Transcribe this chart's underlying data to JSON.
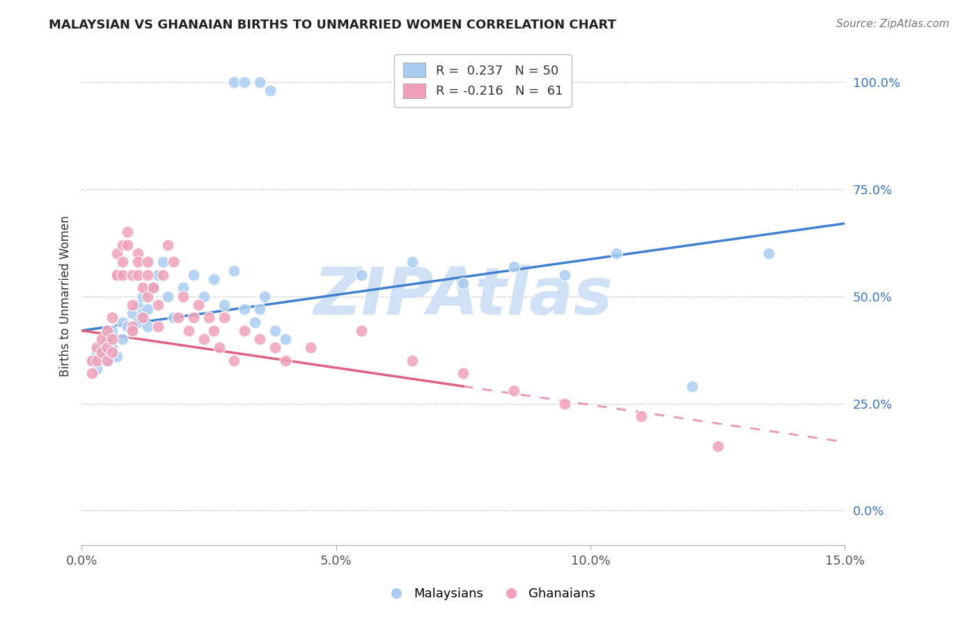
{
  "title": "MALAYSIAN VS GHANAIAN BIRTHS TO UNMARRIED WOMEN CORRELATION CHART",
  "source": "Source: ZipAtlas.com",
  "ylabel": "Births to Unmarried Women",
  "xlabel_vals": [
    0.0,
    5.0,
    10.0,
    15.0
  ],
  "ylabel_vals": [
    0.0,
    25.0,
    50.0,
    75.0,
    100.0
  ],
  "xlim": [
    0.0,
    15.0
  ],
  "ylim": [
    -8.0,
    108.0
  ],
  "blue_r": "0.237",
  "blue_n": "50",
  "pink_r": "-0.216",
  "pink_n": "61",
  "blue_color": "#A8CCF0",
  "pink_color": "#F0A0B8",
  "blue_line_color": "#4080D0",
  "pink_line_color": "#E06080",
  "watermark": "ZIPAtlas",
  "watermark_color": "#D0E0F5",
  "background_color": "#FFFFFF",
  "blue_line_x0": 0.0,
  "blue_line_y0": 42.0,
  "blue_line_x1": 15.0,
  "blue_line_y1": 67.0,
  "pink_line_x0": 0.0,
  "pink_line_y0": 42.0,
  "pink_line_x1": 15.0,
  "pink_line_y1": 16.0,
  "pink_solid_end": 7.5,
  "malaysian_x": [
    0.2,
    0.3,
    0.3,
    0.4,
    0.4,
    0.5,
    0.5,
    0.6,
    0.6,
    0.7,
    0.8,
    0.8,
    0.9,
    1.0,
    1.0,
    1.1,
    1.1,
    1.2,
    1.2,
    1.3,
    1.3,
    1.4,
    1.5,
    1.6,
    1.7,
    1.8,
    2.0,
    2.2,
    2.4,
    2.6,
    2.8,
    3.0,
    3.2,
    3.4,
    3.5,
    3.6,
    3.8,
    4.0,
    5.5,
    6.5,
    7.5,
    8.5,
    9.5,
    10.5,
    12.0,
    13.5,
    3.0,
    3.2,
    3.5,
    3.7
  ],
  "malaysian_y": [
    35,
    37,
    33,
    36,
    38,
    40,
    35,
    38,
    42,
    36,
    44,
    40,
    43,
    46,
    42,
    48,
    44,
    50,
    46,
    47,
    43,
    52,
    55,
    58,
    50,
    45,
    52,
    55,
    50,
    54,
    48,
    56,
    47,
    44,
    47,
    50,
    42,
    40,
    55,
    58,
    53,
    57,
    55,
    60,
    29,
    60,
    100,
    100,
    100,
    98
  ],
  "ghanaian_x": [
    0.2,
    0.2,
    0.3,
    0.3,
    0.4,
    0.4,
    0.5,
    0.5,
    0.5,
    0.6,
    0.6,
    0.6,
    0.7,
    0.7,
    0.7,
    0.8,
    0.8,
    0.8,
    0.9,
    0.9,
    1.0,
    1.0,
    1.0,
    1.0,
    1.1,
    1.1,
    1.1,
    1.2,
    1.2,
    1.3,
    1.3,
    1.3,
    1.4,
    1.5,
    1.5,
    1.6,
    1.7,
    1.8,
    1.9,
    2.0,
    2.1,
    2.2,
    2.3,
    2.4,
    2.5,
    2.6,
    2.7,
    2.8,
    3.0,
    3.2,
    3.5,
    3.8,
    4.0,
    4.5,
    5.5,
    6.5,
    7.5,
    8.5,
    9.5,
    11.0,
    12.5
  ],
  "ghanaian_y": [
    35,
    32,
    38,
    35,
    40,
    37,
    42,
    38,
    35,
    45,
    40,
    37,
    55,
    60,
    55,
    62,
    58,
    55,
    65,
    62,
    48,
    55,
    43,
    42,
    60,
    58,
    55,
    52,
    45,
    58,
    55,
    50,
    52,
    48,
    43,
    55,
    62,
    58,
    45,
    50,
    42,
    45,
    48,
    40,
    45,
    42,
    38,
    45,
    35,
    42,
    40,
    38,
    35,
    38,
    42,
    35,
    32,
    28,
    25,
    22,
    15
  ]
}
